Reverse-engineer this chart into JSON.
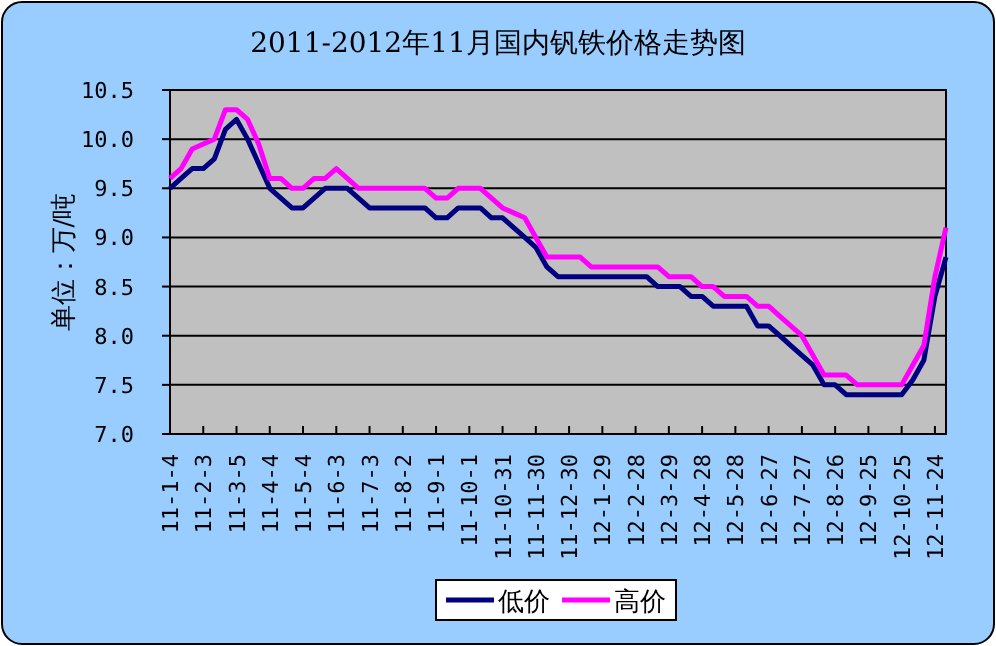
{
  "chart_data": {
    "type": "line",
    "title": "2011-2012年11月国内钒铁价格走势图",
    "ylabel": "单位：万/吨",
    "categories": [
      "11-1-4",
      null,
      null,
      "11-2-3",
      null,
      null,
      "11-3-5",
      null,
      null,
      "11-4-4",
      null,
      null,
      "11-5-4",
      null,
      null,
      "11-6-3",
      null,
      null,
      "11-7-3",
      null,
      null,
      "11-8-2",
      null,
      null,
      "11-9-1",
      null,
      null,
      "11-10-1",
      null,
      null,
      "11-10-31",
      null,
      null,
      "11-11-30",
      null,
      null,
      "11-12-30",
      null,
      null,
      "12-1-29",
      null,
      null,
      "12-2-28",
      null,
      null,
      "12-3-29",
      null,
      null,
      "12-4-28",
      null,
      null,
      "12-5-28",
      null,
      null,
      "12-6-27",
      null,
      null,
      "12-7-27",
      null,
      null,
      "12-8-26",
      null,
      null,
      "12-9-25",
      null,
      null,
      "12-10-25",
      null,
      null,
      "12-11-24",
      null
    ],
    "series": [
      {
        "name": "低价",
        "color": "#000080",
        "values": [
          9.5,
          9.6,
          9.7,
          9.7,
          9.8,
          10.1,
          10.2,
          10.0,
          9.75,
          9.5,
          9.4,
          9.3,
          9.3,
          9.4,
          9.5,
          9.5,
          9.5,
          9.4,
          9.3,
          9.3,
          9.3,
          9.3,
          9.3,
          9.3,
          9.2,
          9.2,
          9.3,
          9.3,
          9.3,
          9.2,
          9.2,
          9.1,
          9.0,
          8.9,
          8.7,
          8.6,
          8.6,
          8.6,
          8.6,
          8.6,
          8.6,
          8.6,
          8.6,
          8.6,
          8.5,
          8.5,
          8.5,
          8.4,
          8.4,
          8.3,
          8.3,
          8.3,
          8.3,
          8.1,
          8.1,
          8.0,
          7.9,
          7.8,
          7.7,
          7.5,
          7.5,
          7.4,
          7.4,
          7.4,
          7.4,
          7.4,
          7.4,
          7.55,
          7.75,
          8.4,
          8.8
        ]
      },
      {
        "name": "高价",
        "color": "#ff00ff",
        "values": [
          9.6,
          9.7,
          9.9,
          9.95,
          10.0,
          10.3,
          10.3,
          10.2,
          9.95,
          9.6,
          9.6,
          9.5,
          9.5,
          9.6,
          9.6,
          9.7,
          9.6,
          9.5,
          9.5,
          9.5,
          9.5,
          9.5,
          9.5,
          9.5,
          9.4,
          9.4,
          9.5,
          9.5,
          9.5,
          9.4,
          9.3,
          9.25,
          9.2,
          9.0,
          8.8,
          8.8,
          8.8,
          8.8,
          8.7,
          8.7,
          8.7,
          8.7,
          8.7,
          8.7,
          8.7,
          8.6,
          8.6,
          8.6,
          8.5,
          8.5,
          8.4,
          8.4,
          8.4,
          8.3,
          8.3,
          8.2,
          8.1,
          8.0,
          7.8,
          7.6,
          7.6,
          7.6,
          7.5,
          7.5,
          7.5,
          7.5,
          7.5,
          7.7,
          7.9,
          8.6,
          9.1
        ]
      }
    ],
    "ylim": [
      7.0,
      10.5
    ],
    "yticks": [
      {
        "value": 7.0,
        "label": "7.0"
      },
      {
        "value": 7.5,
        "label": "7.5"
      },
      {
        "value": 8.0,
        "label": "8.0"
      },
      {
        "value": 8.5,
        "label": "8.5"
      },
      {
        "value": 9.0,
        "label": "9.0"
      },
      {
        "value": 9.5,
        "label": "9.5"
      },
      {
        "value": 10.0,
        "label": "10.0"
      },
      {
        "value": 10.5,
        "label": "10.5"
      }
    ],
    "grid": "y",
    "legend": "bottom"
  }
}
